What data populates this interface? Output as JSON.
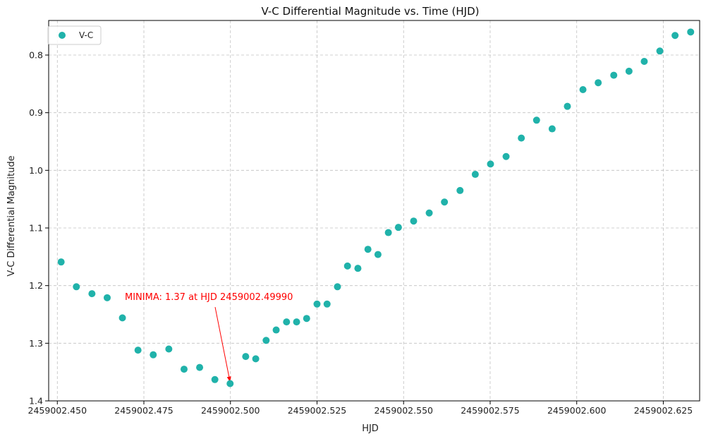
{
  "chart_data": {
    "type": "scatter",
    "title": "V-C Differential Magnitude vs. Time (HJD)",
    "xlabel": "HJD",
    "ylabel": "V-C Differential Magnitude",
    "xlim": [
      2459002.4475,
      2459002.6355
    ],
    "ylim": [
      1.4,
      0.74
    ],
    "y_inverted": true,
    "grid": true,
    "grid_style": "dashed",
    "legend_placement": "top-left",
    "x_ticks": [
      2459002.45,
      2459002.475,
      2459002.5,
      2459002.525,
      2459002.55,
      2459002.575,
      2459002.6,
      2459002.625
    ],
    "x_tick_labels": [
      "2459002.450",
      "2459002.475",
      "2459002.500",
      "2459002.525",
      "2459002.550",
      "2459002.575",
      "2459002.600",
      "2459002.625"
    ],
    "y_ticks": [
      0.8,
      0.9,
      1.0,
      1.1,
      1.2,
      1.3,
      1.4
    ],
    "y_tick_labels": [
      "0.8",
      "0.9",
      "1.0",
      "1.1",
      "1.2",
      "1.3",
      "1.4"
    ],
    "series": [
      {
        "name": "V-C",
        "color": "#20b2aa",
        "x": [
          2459002.4511,
          2459002.4555,
          2459002.46,
          2459002.4644,
          2459002.4688,
          2459002.4733,
          2459002.4777,
          2459002.4822,
          2459002.4866,
          2459002.4911,
          2459002.4955,
          2459002.4999,
          2459002.5044,
          2459002.5073,
          2459002.5103,
          2459002.5132,
          2459002.5162,
          2459002.5191,
          2459002.522,
          2459002.525,
          2459002.5279,
          2459002.5309,
          2459002.5338,
          2459002.5368,
          2459002.5397,
          2459002.5426,
          2459002.5456,
          2459002.5485,
          2459002.5529,
          2459002.5574,
          2459002.5618,
          2459002.5663,
          2459002.5707,
          2459002.5751,
          2459002.5796,
          2459002.584,
          2459002.5884,
          2459002.5929,
          2459002.5973,
          2459002.6018,
          2459002.6062,
          2459002.6107,
          2459002.6151,
          2459002.6195,
          2459002.624,
          2459002.6284,
          2459002.6329
        ],
        "y": [
          1.159,
          1.202,
          1.214,
          1.221,
          1.256,
          1.312,
          1.32,
          1.31,
          1.345,
          1.342,
          1.363,
          1.37,
          1.323,
          1.327,
          1.295,
          1.277,
          1.263,
          1.263,
          1.257,
          1.232,
          1.232,
          1.202,
          1.166,
          1.17,
          1.137,
          1.146,
          1.108,
          1.099,
          1.088,
          1.074,
          1.055,
          1.035,
          1.007,
          0.989,
          0.976,
          0.944,
          0.913,
          0.928,
          0.889,
          0.86,
          0.848,
          0.835,
          0.828,
          0.811,
          0.793,
          0.766,
          0.76
        ]
      }
    ],
    "annotation": {
      "text": "MINIMA: 1.37 at HJD 2459002.49990",
      "color": "#ff0000",
      "point": [
        2459002.4999,
        1.37
      ],
      "text_anchor_data": [
        2459002.4695,
        1.225
      ]
    }
  }
}
